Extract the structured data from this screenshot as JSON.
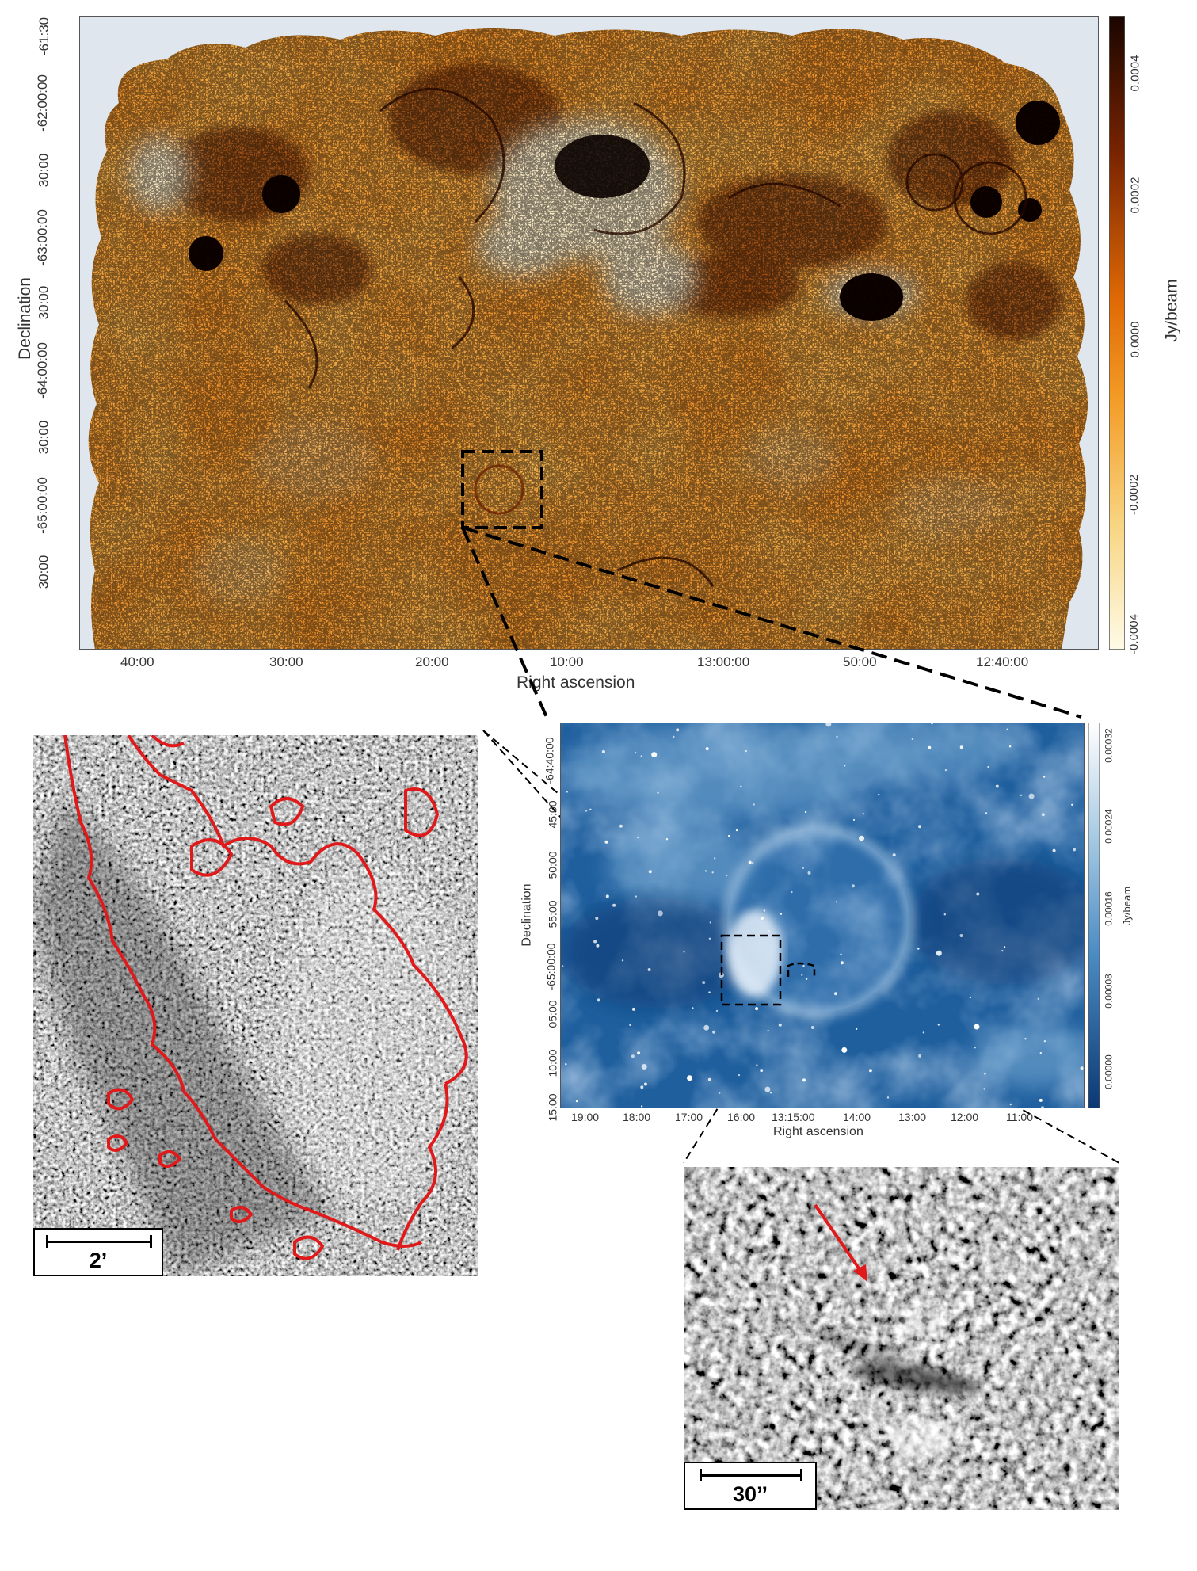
{
  "main_map": {
    "ylabel": "Declination",
    "xlabel": "Right ascension",
    "dec_ticks": [
      "-61:30",
      "-62:00:00",
      "30:00",
      "-63:00:00",
      "30:00",
      "-64:00:00",
      "30:00",
      "-65:00:00",
      "30:00"
    ],
    "ra_ticks": [
      "40:00",
      "30:00",
      "20:00",
      "10:00",
      "13:00:00",
      "50:00",
      "12:40:00"
    ],
    "colorbar": {
      "label": "Jy/beam",
      "ticks": [
        "0.0004",
        "0.0002",
        "0.0000",
        "-0.0002",
        "-0.0004"
      ],
      "colors": [
        "#1a0500",
        "#8a2a00",
        "#f08a10",
        "#f7c860",
        "#fffbe8"
      ]
    }
  },
  "zoom_map": {
    "ylabel": "Declination",
    "xlabel": "Right ascension",
    "dec_ticks": [
      "-64:40:00",
      "45:00",
      "50:00",
      "55:00",
      "-65:00:00",
      "05:00",
      "10:00",
      "15:00"
    ],
    "ra_ticks": [
      "19:00",
      "18:00",
      "17:00",
      "16:00",
      "13:15:00",
      "14:00",
      "13:00",
      "12:00",
      "11:00"
    ],
    "colorbar": {
      "label": "Jy/beam",
      "ticks": [
        "0.00032",
        "0.00024",
        "0.00016",
        "0.00008",
        "0.00000"
      ],
      "colors": [
        "#ffffff",
        "#9cc4de",
        "#4a8cc4",
        "#1d5a9a",
        "#0d3a75"
      ]
    }
  },
  "inset_left": {
    "scale_label": "2’"
  },
  "inset_right": {
    "scale_label": "30’’"
  },
  "colors": {
    "contour": "#e0191b",
    "arrow": "#e0191b",
    "frame_bg": "#dfe6ee"
  }
}
